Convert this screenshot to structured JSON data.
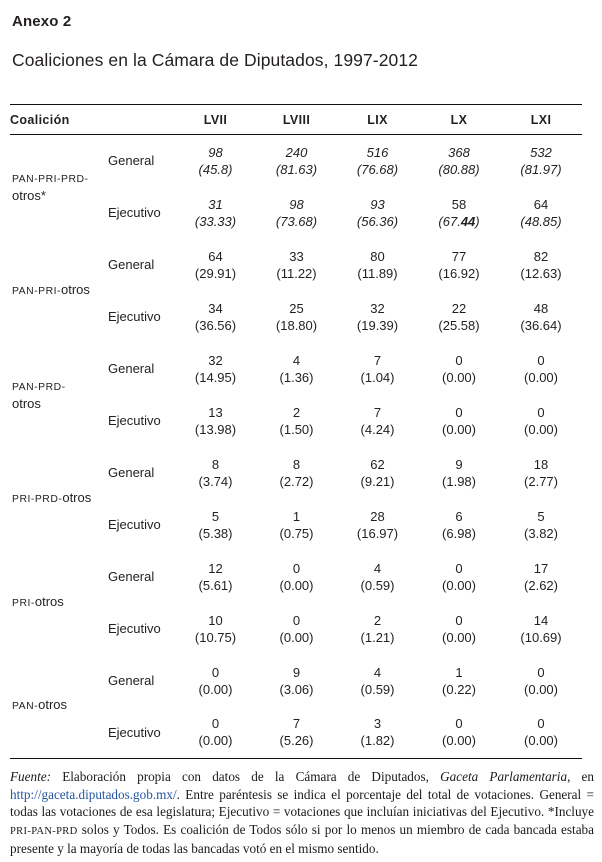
{
  "header": {
    "annex": "Anexo 2",
    "title": "Coaliciones en la Cámara de Diputados, 1997-2012"
  },
  "table": {
    "coalition_header": "Coalición",
    "legislatures": [
      "LVII",
      "LVIII",
      "LIX",
      "LX",
      "LXI"
    ],
    "row_labels": [
      "General",
      "Ejecutivo"
    ],
    "blocks": [
      {
        "name_lines": [
          [
            {
              "t": "PAN-PRI-PRD-",
              "sc": true
            }
          ],
          [
            {
              "t": "otros*"
            }
          ]
        ],
        "rows": [
          {
            "label": "General",
            "cells": [
              {
                "n": "98",
                "p": "(45.8)",
                "in": true,
                "ip": true
              },
              {
                "n": "240",
                "p": "(81.63)",
                "in": true,
                "ip": true
              },
              {
                "n": "516",
                "p": "(76.68)",
                "in": true,
                "ip": true
              },
              {
                "n": "368",
                "p": "(80.88)",
                "in": true,
                "ip": true
              },
              {
                "n": "532",
                "p": "(81.97)",
                "in": true,
                "ip": true
              }
            ]
          },
          {
            "label": "Ejecutivo",
            "cells": [
              {
                "n": "31",
                "p": "(33.33)",
                "in": true,
                "ip": true
              },
              {
                "n": "98",
                "p": "(73.68)",
                "in": true,
                "ip": true
              },
              {
                "n": "93",
                "p": "(56.36)",
                "in": true,
                "ip": true
              },
              {
                "n": "58",
                "p": "(67.44)",
                "in": false,
                "ip": true,
                "bf": true
              },
              {
                "n": "64",
                "p": "(48.85)",
                "in": false,
                "ip": true
              }
            ]
          }
        ]
      },
      {
        "name_lines": [
          [
            {
              "t": "PAN-PRI-",
              "sc": true
            },
            {
              "t": "otros"
            }
          ]
        ],
        "rows": [
          {
            "label": "General",
            "cells": [
              {
                "n": "64",
                "p": "(29.91)"
              },
              {
                "n": "33",
                "p": "(11.22)"
              },
              {
                "n": "80",
                "p": "(11.89)"
              },
              {
                "n": "77",
                "p": "(16.92)"
              },
              {
                "n": "82",
                "p": "(12.63)"
              }
            ]
          },
          {
            "label": "Ejecutivo",
            "cells": [
              {
                "n": "34",
                "p": "(36.56)"
              },
              {
                "n": "25",
                "p": "(18.80)"
              },
              {
                "n": "32",
                "p": "(19.39)"
              },
              {
                "n": "22",
                "p": "(25.58)"
              },
              {
                "n": "48",
                "p": "(36.64)"
              }
            ]
          }
        ]
      },
      {
        "name_lines": [
          [
            {
              "t": "PAN-PRD-",
              "sc": true
            }
          ],
          [
            {
              "t": "otros"
            }
          ]
        ],
        "rows": [
          {
            "label": "General",
            "cells": [
              {
                "n": "32",
                "p": "(14.95)"
              },
              {
                "n": "4",
                "p": "(1.36)"
              },
              {
                "n": "7",
                "p": "(1.04)"
              },
              {
                "n": "0",
                "p": "(0.00)"
              },
              {
                "n": "0",
                "p": "(0.00)"
              }
            ]
          },
          {
            "label": "Ejecutivo",
            "cells": [
              {
                "n": "13",
                "p": "(13.98)"
              },
              {
                "n": "2",
                "p": "(1.50)"
              },
              {
                "n": "7",
                "p": "(4.24)"
              },
              {
                "n": "0",
                "p": "(0.00)"
              },
              {
                "n": "0",
                "p": "(0.00)"
              }
            ]
          }
        ]
      },
      {
        "name_lines": [
          [
            {
              "t": "PRI-PRD-",
              "sc": true
            },
            {
              "t": "otros"
            }
          ]
        ],
        "rows": [
          {
            "label": "General",
            "cells": [
              {
                "n": "8",
                "p": "(3.74)"
              },
              {
                "n": "8",
                "p": "(2.72)"
              },
              {
                "n": "62",
                "p": "(9.21)"
              },
              {
                "n": "9",
                "p": "(1.98)"
              },
              {
                "n": "18",
                "p": "(2.77)"
              }
            ]
          },
          {
            "label": "Ejecutivo",
            "cells": [
              {
                "n": "5",
                "p": "(5.38)"
              },
              {
                "n": "1",
                "p": "(0.75)"
              },
              {
                "n": "28",
                "p": "(16.97)"
              },
              {
                "n": "6",
                "p": "(6.98)"
              },
              {
                "n": "5",
                "p": "(3.82)"
              }
            ]
          }
        ]
      },
      {
        "name_lines": [
          [
            {
              "t": "PRI-",
              "sc": true
            },
            {
              "t": "otros"
            }
          ]
        ],
        "rows": [
          {
            "label": "General",
            "cells": [
              {
                "n": "12",
                "p": "(5.61)"
              },
              {
                "n": "0",
                "p": "(0.00)"
              },
              {
                "n": "4",
                "p": "(0.59)"
              },
              {
                "n": "0",
                "p": "(0.00)"
              },
              {
                "n": "17",
                "p": "(2.62)"
              }
            ]
          },
          {
            "label": "Ejecutivo",
            "cells": [
              {
                "n": "10",
                "p": "(10.75)"
              },
              {
                "n": "0",
                "p": "(0.00)"
              },
              {
                "n": "2",
                "p": "(1.21)"
              },
              {
                "n": "0",
                "p": "(0.00)"
              },
              {
                "n": "14",
                "p": "(10.69)"
              }
            ]
          }
        ]
      },
      {
        "name_lines": [
          [
            {
              "t": "PAN-",
              "sc": true
            },
            {
              "t": "otros"
            }
          ]
        ],
        "rows": [
          {
            "label": "General",
            "cells": [
              {
                "n": "0",
                "p": "(0.00)"
              },
              {
                "n": "9",
                "p": "(3.06)"
              },
              {
                "n": "4",
                "p": "(0.59)"
              },
              {
                "n": "1",
                "p": "(0.22)"
              },
              {
                "n": "0",
                "p": "(0.00)"
              }
            ]
          },
          {
            "label": "Ejecutivo",
            "cells": [
              {
                "n": "0",
                "p": "(0.00)"
              },
              {
                "n": "7",
                "p": "(5.26)"
              },
              {
                "n": "3",
                "p": "(1.82)"
              },
              {
                "n": "0",
                "p": "(0.00)"
              },
              {
                "n": "0",
                "p": "(0.00)"
              }
            ]
          }
        ]
      }
    ]
  },
  "footnote": {
    "link_color": "#2456a4",
    "segments": [
      {
        "t": "Fuente:",
        "i": true
      },
      {
        "t": " Elaboración propia con datos de la Cámara de Diputados, "
      },
      {
        "t": "Gaceta Parlamentaria",
        "i": true
      },
      {
        "t": ", en "
      },
      {
        "t": "http://gaceta.diputados.gob.mx/",
        "link": true
      },
      {
        "t": ". Entre paréntesis se indica el porcentaje del total de votaciones. General = todas las votaciones de esa legislatura; Ejecutivo = votaciones que incluían iniciativas del Ejecutivo. *Incluye "
      },
      {
        "t": "PRI-PAN-PRD",
        "sc": true
      },
      {
        "t": " solos y Todos. Es coalición de Todos sólo si por lo menos un miembro de cada bancada estaba presente y la mayoría de todas las bancadas votó en el mismo sentido."
      }
    ]
  },
  "colors": {
    "text": "#231f20",
    "rule": "#111111",
    "link": "#2456a4",
    "background": "#ffffff"
  }
}
